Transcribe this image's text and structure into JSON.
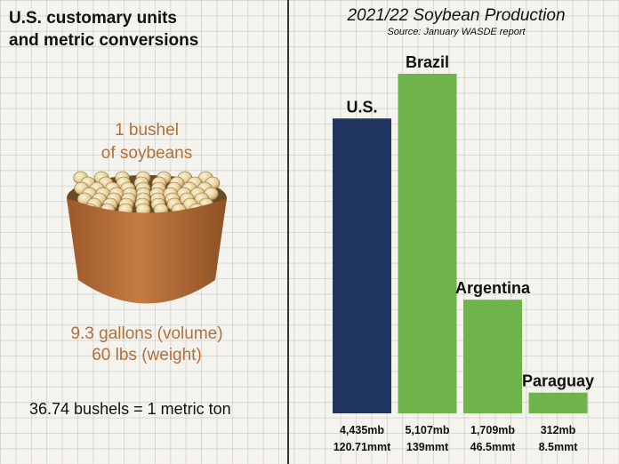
{
  "left": {
    "title_line1": "U.S. customary units",
    "title_line2": "and metric conversions",
    "bushel_line1": "1 bushel",
    "bushel_line2": "of soybeans",
    "volume": "9.3 gallons (volume)",
    "weight": "60 lbs (weight)",
    "conversion": "36.74 bushels = 1 metric ton"
  },
  "colors": {
    "us": "#1f3560",
    "other": "#6fb34c",
    "bushel_text": "#b0703c",
    "basket": "#b36b34"
  },
  "chart_data": {
    "type": "bar",
    "title": "2021/22 Soybean Production",
    "subtitle": "Source: January WASDE report",
    "categories": [
      "U.S.",
      "Brazil",
      "Argentina",
      "Paraguay"
    ],
    "values": [
      4435,
      5107,
      1709,
      312
    ],
    "value_labels": [
      "4,435mb",
      "5,107mb",
      "1,709mb",
      "312mb"
    ],
    "metric_labels": [
      "120.71mmt",
      "139mmt",
      "46.5mmt",
      "8.5mmt"
    ],
    "unit": "mb",
    "colors": [
      "#1f3560",
      "#6fb34c",
      "#6fb34c",
      "#6fb34c"
    ]
  }
}
